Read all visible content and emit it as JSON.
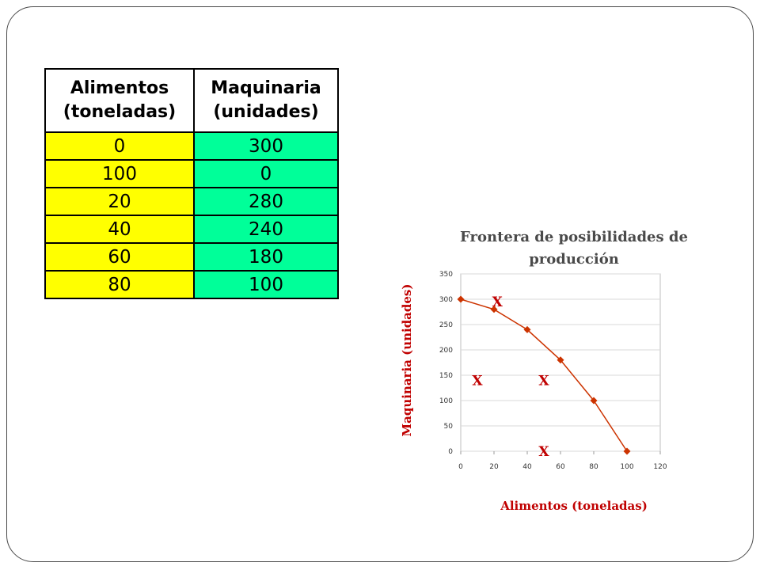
{
  "table": {
    "headers": [
      "Alimentos (toneladas)",
      "Maquinaria (unidades)"
    ],
    "rows": [
      [
        "0",
        "300"
      ],
      [
        "100",
        "0"
      ],
      [
        "20",
        "280"
      ],
      [
        "40",
        "240"
      ],
      [
        "60",
        "180"
      ],
      [
        "80",
        "100"
      ]
    ],
    "colors": {
      "food_column": "#ffff00",
      "machinery_column": "#00ff99"
    }
  },
  "chart_data": {
    "type": "scatter",
    "title": "Frontera de posibilidades de producción",
    "xlabel": "Alimentos (toneladas)",
    "ylabel": "Maquinaria (unidades)",
    "xlim": [
      0,
      120
    ],
    "ylim": [
      0,
      350
    ],
    "xticks": [
      "0",
      "20",
      "40",
      "60",
      "80",
      "100",
      "120"
    ],
    "yticks": [
      "0",
      "50",
      "100",
      "150",
      "200",
      "250",
      "300",
      "350"
    ],
    "grid": true,
    "series": [
      {
        "x": [
          0,
          20,
          40,
          60,
          80,
          100
        ],
        "y": [
          300,
          280,
          240,
          180,
          100,
          0
        ],
        "color": "#cc3300",
        "marker": "diamond",
        "line": "smooth"
      }
    ],
    "annotations": [
      {
        "text": "X",
        "x": 22,
        "y": 295
      },
      {
        "text": "X",
        "x": 10,
        "y": 140
      },
      {
        "text": "X",
        "x": 50,
        "y": 0
      },
      {
        "text": "X",
        "x": 50,
        "y": 140
      }
    ],
    "colors": {
      "annotation": "#c00000",
      "axis_label": "#c00000",
      "grid": "#d9d9d9"
    }
  }
}
